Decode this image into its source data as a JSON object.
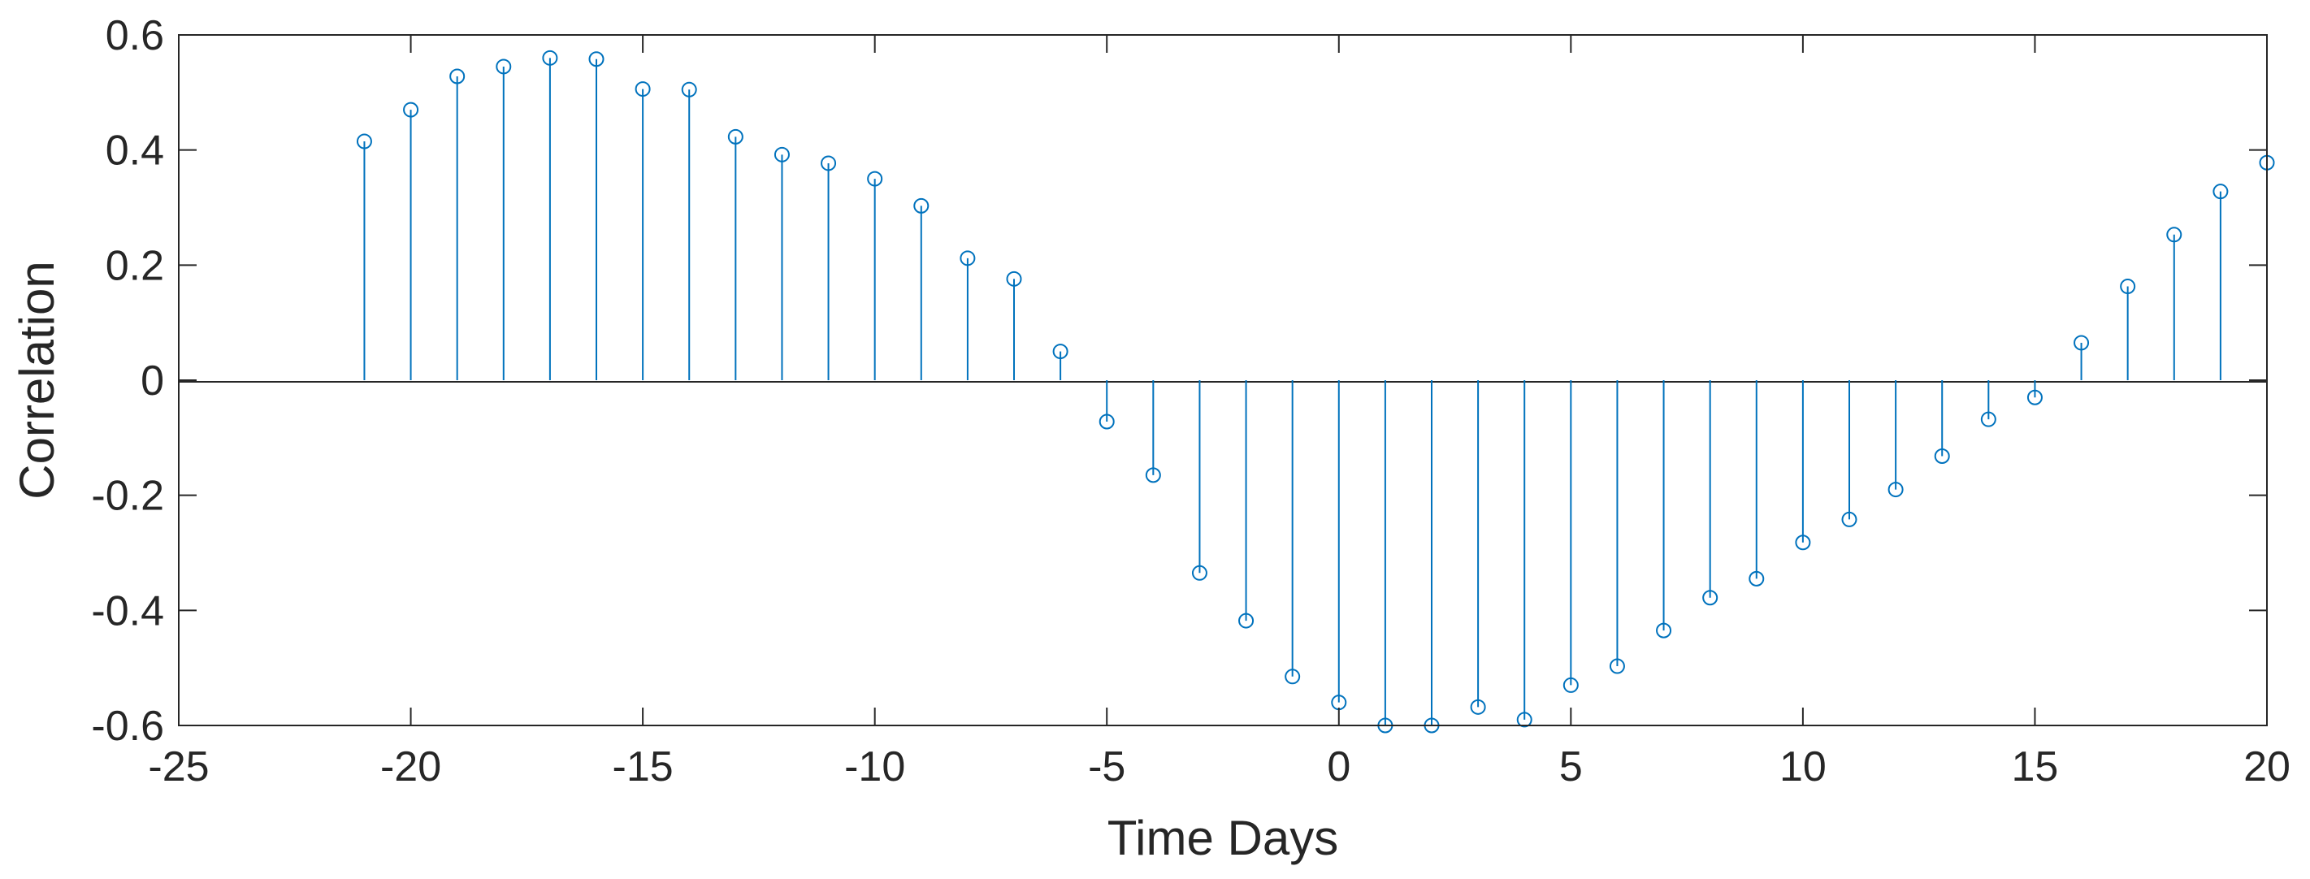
{
  "chart_data": {
    "type": "stem",
    "title": "",
    "xlabel": "Time Days",
    "ylabel": "Correlation",
    "xlim": [
      -25,
      20
    ],
    "ylim": [
      -0.6,
      0.6
    ],
    "xticks": [
      -25,
      -20,
      -15,
      -10,
      -5,
      0,
      5,
      10,
      15,
      20
    ],
    "yticks": [
      -0.6,
      -0.4,
      -0.2,
      0,
      0.2,
      0.4,
      0.6
    ],
    "xtick_labels": [
      "-25",
      "-20",
      "-15",
      "-10",
      "-5",
      "0",
      "5",
      "10",
      "15",
      "20"
    ],
    "ytick_labels": [
      "-0.6",
      "-0.4",
      "-0.2",
      "0",
      "0.2",
      "0.4",
      "0.6"
    ],
    "grid": false,
    "color": "#0072BD",
    "x": [
      -21,
      -20,
      -19,
      -18,
      -17,
      -16,
      -15,
      -14,
      -13,
      -12,
      -11,
      -10,
      -9,
      -8,
      -7,
      -6,
      -5,
      -4,
      -3,
      -2,
      -1,
      0,
      1,
      2,
      3,
      4,
      5,
      6,
      7,
      8,
      9,
      10,
      11,
      12,
      13,
      14,
      15,
      16,
      17,
      18,
      19,
      20
    ],
    "values": [
      0.415,
      0.47,
      0.528,
      0.545,
      0.56,
      0.558,
      0.506,
      0.505,
      0.423,
      0.392,
      0.377,
      0.35,
      0.303,
      0.212,
      0.176,
      0.05,
      -0.072,
      -0.165,
      -0.335,
      -0.418,
      -0.515,
      -0.56,
      -0.6,
      -0.6,
      -0.568,
      -0.59,
      -0.53,
      -0.497,
      -0.435,
      -0.378,
      -0.345,
      -0.282,
      -0.242,
      -0.19,
      -0.132,
      -0.068,
      -0.03,
      0.065,
      0.163,
      0.253,
      0.328,
      0.378
    ]
  }
}
